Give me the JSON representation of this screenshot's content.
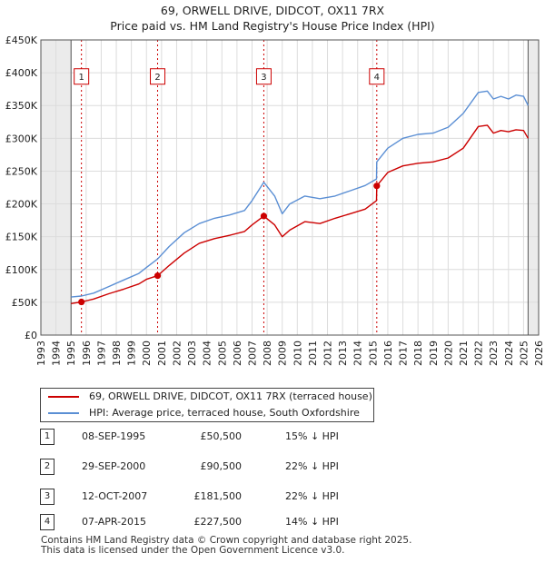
{
  "title": "69, ORWELL DRIVE, DIDCOT, OX11 7RX",
  "subtitle": "Price paid vs. HM Land Registry's House Price Index (HPI)",
  "chart_data": {
    "type": "line",
    "xlim": [
      1993,
      2026
    ],
    "ylim": [
      0,
      450000
    ],
    "x_ticks": [
      1993,
      1994,
      1995,
      1996,
      1997,
      1998,
      1999,
      2000,
      2001,
      2002,
      2003,
      2004,
      2005,
      2006,
      2007,
      2008,
      2009,
      2010,
      2011,
      2012,
      2013,
      2014,
      2015,
      2016,
      2017,
      2018,
      2019,
      2020,
      2021,
      2022,
      2023,
      2024,
      2025,
      2026
    ],
    "y_ticks": [
      0,
      50000,
      100000,
      150000,
      200000,
      250000,
      300000,
      350000,
      400000,
      450000
    ],
    "y_tick_labels": [
      "£0",
      "£50K",
      "£100K",
      "£150K",
      "£200K",
      "£250K",
      "£300K",
      "£350K",
      "£400K",
      "£450K"
    ],
    "data_range": [
      1995.0,
      2025.3
    ],
    "series": [
      {
        "name": "69, ORWELL DRIVE, DIDCOT, OX11 7RX (terraced house)",
        "color": "#cc0000",
        "x": [
          1995.0,
          1995.69,
          1996.5,
          1997.5,
          1998.5,
          1999.5,
          2000.0,
          2000.74,
          2001.5,
          2002.5,
          2003.5,
          2004.5,
          2005.5,
          2006.5,
          2007.0,
          2007.78,
          2008.5,
          2009.0,
          2009.5,
          2010.5,
          2011.5,
          2012.5,
          2013.5,
          2014.5,
          2015.25,
          2015.27,
          2016.0,
          2017.0,
          2018.0,
          2019.0,
          2020.0,
          2021.0,
          2022.0,
          2022.6,
          2023.0,
          2023.5,
          2024.0,
          2024.5,
          2025.0,
          2025.3
        ],
        "y": [
          48000,
          50500,
          55000,
          63000,
          70000,
          78000,
          85000,
          90500,
          106000,
          125000,
          140000,
          147000,
          152000,
          158000,
          168000,
          181500,
          168000,
          150000,
          160000,
          173000,
          170000,
          178000,
          185000,
          192000,
          205000,
          227500,
          248000,
          258000,
          262000,
          264000,
          270000,
          285000,
          318000,
          320000,
          308000,
          312000,
          310000,
          313000,
          312000,
          300000
        ]
      },
      {
        "name": "HPI: Average price, terraced house, South Oxfordshire",
        "color": "#5b8fd4",
        "x": [
          1995.0,
          1995.69,
          1996.5,
          1997.5,
          1998.5,
          1999.5,
          2000.0,
          2000.74,
          2001.5,
          2002.5,
          2003.5,
          2004.5,
          2005.5,
          2006.5,
          2007.0,
          2007.78,
          2008.5,
          2009.0,
          2009.5,
          2010.5,
          2011.5,
          2012.5,
          2013.5,
          2014.5,
          2015.25,
          2015.27,
          2016.0,
          2017.0,
          2018.0,
          2019.0,
          2020.0,
          2021.0,
          2022.0,
          2022.6,
          2023.0,
          2023.5,
          2024.0,
          2024.5,
          2025.0,
          2025.3
        ],
        "y": [
          58000,
          59500,
          64000,
          74000,
          84000,
          94000,
          103000,
          116000,
          135000,
          156000,
          170000,
          178000,
          183000,
          190000,
          205000,
          233000,
          212000,
          185000,
          200000,
          212000,
          208000,
          212000,
          220000,
          228000,
          238000,
          264000,
          285000,
          300000,
          306000,
          308000,
          317000,
          338000,
          370000,
          372000,
          360000,
          364000,
          360000,
          366000,
          364000,
          350000
        ]
      }
    ],
    "sale_markers": [
      {
        "label": "1",
        "x": 1995.69,
        "y": 50500
      },
      {
        "label": "2",
        "x": 2000.74,
        "y": 90500
      },
      {
        "label": "3",
        "x": 2007.78,
        "y": 181500
      },
      {
        "label": "4",
        "x": 2015.27,
        "y": 227500
      }
    ],
    "marker_label_level": 395000
  },
  "legend": {
    "property_label": "69, ORWELL DRIVE, DIDCOT, OX11 7RX (terraced house)",
    "hpi_label": "HPI: Average price, terraced house, South Oxfordshire",
    "property_color": "#cc0000",
    "hpi_color": "#5b8fd4"
  },
  "sales": [
    {
      "num": "1",
      "date": "08-SEP-1995",
      "price": "£50,500",
      "hpi": "15% ↓ HPI"
    },
    {
      "num": "2",
      "date": "29-SEP-2000",
      "price": "£90,500",
      "hpi": "22% ↓ HPI"
    },
    {
      "num": "3",
      "date": "12-OCT-2007",
      "price": "£181,500",
      "hpi": "22% ↓ HPI"
    },
    {
      "num": "4",
      "date": "07-APR-2015",
      "price": "£227,500",
      "hpi": "14% ↓ HPI"
    }
  ],
  "footer": {
    "line1": "Contains HM Land Registry data © Crown copyright and database right 2025.",
    "line2": "This data is licensed under the Open Government Licence v3.0."
  }
}
